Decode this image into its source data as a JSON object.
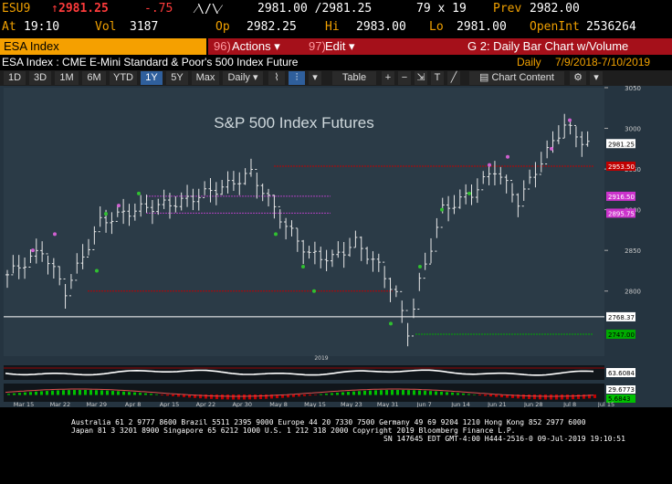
{
  "header": {
    "ticker": "ESU9",
    "last": "2981.25",
    "change": "-.75",
    "bid_ask": "2981.00 /2981.25",
    "size": "79 x 19",
    "prev_label": "Prev",
    "prev": "2982.00",
    "time_label": "At",
    "time": "19:10",
    "vol_label": "Vol",
    "vol": "3187",
    "open_label": "Op",
    "open": "2982.25",
    "hi_label": "Hi",
    "hi": "2983.00",
    "lo_label": "Lo",
    "lo": "2981.00",
    "openint_label": "OpenInt",
    "openint": "2536264"
  },
  "command_bar": {
    "security": "ESA Index",
    "actions_num": "96)",
    "actions": "Actions ▾",
    "edit_num": "97)",
    "edit": "Edit ▾",
    "graph": "G 2: Daily Bar Chart w/Volume"
  },
  "subtitle": {
    "description": "ESA Index : CME E-Mini Standard & Poor's 500 Index Future",
    "period": "Daily",
    "range": "7/9/2018-7/10/2019"
  },
  "toolbar": {
    "ranges": [
      "1D",
      "3D",
      "1M",
      "6M",
      "YTD",
      "1Y",
      "5Y",
      "Max"
    ],
    "selected_range": "1Y",
    "frequency": "Daily ▾",
    "table": "Table",
    "chart_content": "Chart Content"
  },
  "chart_data": {
    "type": "bar",
    "title": "S&P 500 Index Futures",
    "ylim": [
      2720,
      3050
    ],
    "y_ticks": [
      2800,
      2850,
      2900,
      2950,
      3000,
      3050
    ],
    "x_ticks": [
      "Mar 15",
      "Mar 22",
      "Mar 29",
      "Apr 8",
      "Apr 15",
      "Apr 22",
      "Apr 30",
      "May 8",
      "May 15",
      "May 23",
      "May 31",
      "Jun 7",
      "Jun 14",
      "Jun 21",
      "Jun 28",
      "Jul 8",
      "Jul 15"
    ],
    "x_year_label": "2019",
    "last_price_label": "2981.25",
    "level_labels": [
      "2953.50",
      "2916.50",
      "2895.75",
      "2768.37",
      "2747.00"
    ],
    "indicator1_label": "63.6084",
    "indicator2_labels": [
      "29.6773",
      "5.6843"
    ],
    "colors": {
      "last": "#ffffff",
      "red_level": "#c00000",
      "magenta_level": "#cc33cc",
      "green_level": "#00aa00"
    }
  },
  "footer": {
    "line1": "Australia 61 2 9777 8600 Brazil 5511 2395 9000 Europe 44 20 7330 7500 Germany 49 69 9204 1210 Hong Kong 852 2977 6000",
    "line2": "Japan 81 3 3201 8900        Singapore 65 6212 1000        U.S. 1 212 318 2000        Copyright 2019 Bloomberg Finance L.P.",
    "line3": "SN 147645 EDT  GMT-4:00 H444-2516-0 09-Jul-2019 19:10:51"
  }
}
